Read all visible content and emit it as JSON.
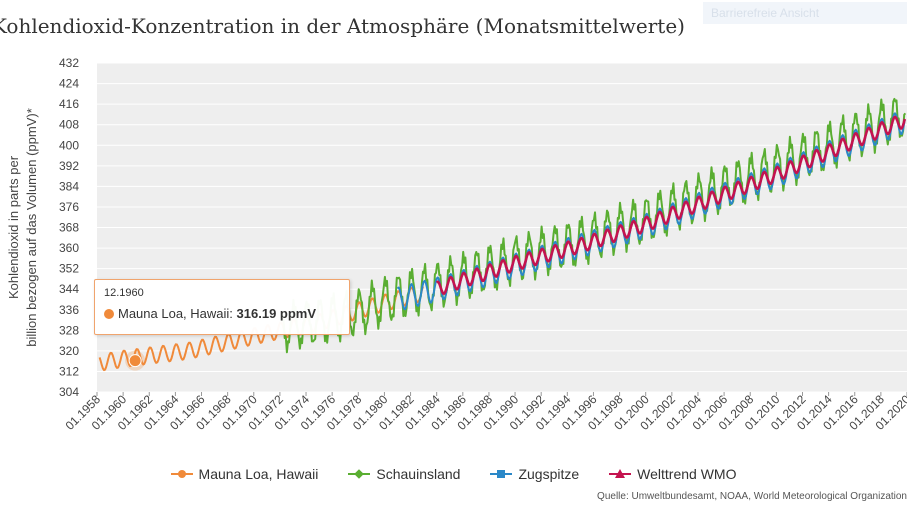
{
  "header": {
    "title": "Kohlendioxid-Konzentration in der Atmosphäre (Monatsmittelwerte)",
    "corner_widget": "Barrierefreie Ansicht"
  },
  "tooltip": {
    "date": "12.1960",
    "series": "Mauna Loa, Hawaii:",
    "value": "316.19 ppmV"
  },
  "source": "Quelle: Umweltbundesamt, NOAA, World Meteorological Organization",
  "colors": {
    "mauna_loa": "#f08a3a",
    "schauinsland": "#5aae32",
    "zugspitze": "#2b88c8",
    "wmo": "#c4134f",
    "plot_bg": "#eeeeee",
    "grid": "#ffffff"
  },
  "chart_data": {
    "type": "line",
    "title": "Kohlendioxid-Konzentration in der Atmosphäre (Monatsmittelwerte)",
    "ylabel": "Kohlendioxid in parts per billion bezogen auf das Volumen (ppmV)*",
    "xlabel": "",
    "ylim": [
      304,
      432
    ],
    "yticks": [
      304,
      312,
      320,
      328,
      336,
      344,
      352,
      360,
      368,
      376,
      384,
      392,
      400,
      408,
      416,
      424,
      432
    ],
    "xlim": [
      1958.0,
      2020.0
    ],
    "xtick_labels": [
      "01.1958",
      "01.1960",
      "01.1962",
      "01.1964",
      "01.1966",
      "01.1968",
      "01.1970",
      "01.1972",
      "01.1974",
      "01.1976",
      "01.1978",
      "01.1980",
      "01.1982",
      "01.1984",
      "01.1986",
      "01.1988",
      "01.1990",
      "01.1992",
      "01.1994",
      "01.1996",
      "01.1998",
      "01.2000",
      "01.2002",
      "01.2004",
      "01.2006",
      "01.2008",
      "01.2010",
      "01.2012",
      "01.2014",
      "01.2016",
      "01.2018",
      "01.2020"
    ],
    "legend": [
      "Mauna Loa, Hawaii",
      "Schauinsland",
      "Zugspitze",
      "Welttrend WMO"
    ],
    "highlight": {
      "series": "Mauna Loa, Hawaii",
      "date": "12.1960",
      "x": 1960.92,
      "y": 316.19
    },
    "series": [
      {
        "name": "Mauna Loa, Hawaii",
        "color_key": "mauna_loa",
        "x_range": [
          1958.2,
          1983.0
        ],
        "trend_years": [
          1958,
          1960,
          1965,
          1970,
          1975,
          1980,
          1983
        ],
        "trend_values": [
          315.2,
          316.9,
          320.0,
          325.7,
          331.1,
          338.7,
          342.7
        ],
        "seasonal_amplitude": 3.2
      },
      {
        "name": "Schauinsland",
        "color_key": "schauinsland",
        "x_range": [
          1972.2,
          2019.9
        ],
        "trend_years": [
          1972,
          1975,
          1978,
          1980,
          1983,
          1985,
          1990,
          1995,
          2000,
          2005,
          2010,
          2015,
          2019.9
        ],
        "trend_values": [
          329.0,
          331.5,
          335.0,
          339.5,
          344.0,
          347.0,
          355.5,
          362.5,
          371.0,
          381.5,
          391.0,
          401.8,
          412.0
        ],
        "seasonal_amplitude": 8.0
      },
      {
        "name": "Zugspitze",
        "color_key": "zugspitze",
        "x_range": [
          1981.0,
          2019.9
        ],
        "trend_years": [
          1981,
          1985,
          1990,
          1995,
          2000,
          2005,
          2010,
          2015,
          2019.9
        ],
        "trend_values": [
          340.0,
          345.2,
          353.2,
          360.8,
          368.6,
          378.8,
          388.2,
          399.2,
          409.6
        ],
        "seasonal_amplitude": 4.6
      },
      {
        "name": "Welttrend WMO",
        "color_key": "wmo",
        "x_range": [
          1984.0,
          2019.9
        ],
        "trend_years": [
          1984,
          1985,
          1990,
          1995,
          2000,
          2005,
          2010,
          2015,
          2019.9
        ],
        "trend_values": [
          344.0,
          345.8,
          354.0,
          361.0,
          369.2,
          379.0,
          388.6,
          399.6,
          410.0
        ],
        "seasonal_amplitude": 2.8
      }
    ]
  }
}
